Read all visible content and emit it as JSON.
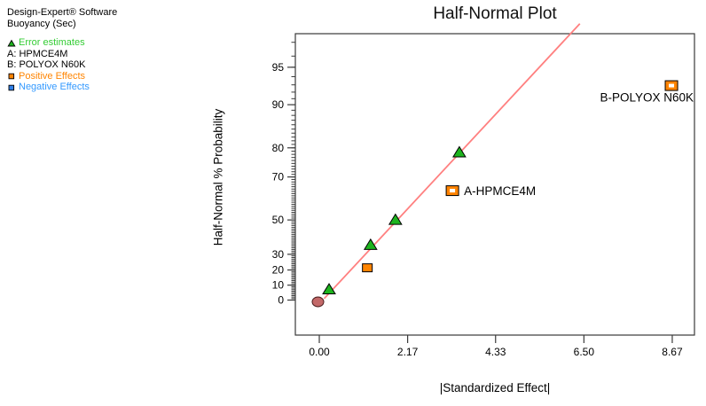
{
  "app": {
    "software_label": "Design-Expert® Software",
    "response_label": "Buoyancy (Sec)"
  },
  "legend": {
    "items": [
      {
        "label": "Error estimates",
        "icon": "triangle",
        "color": "#33cc33"
      },
      {
        "label": "A: HPMCE4M",
        "icon": "none",
        "color": "#000000"
      },
      {
        "label": "B: POLYOX N60K",
        "icon": "none",
        "color": "#000000"
      },
      {
        "label": "Positive Effects",
        "icon": "square-orange",
        "color": "#ff8400"
      },
      {
        "label": "Negative Effects",
        "icon": "square-blue",
        "color": "#3399ff"
      }
    ]
  },
  "chart_data": {
    "type": "scatter",
    "title": "Half-Normal Plot",
    "xlabel": "|Standardized Effect|",
    "ylabel": "Half-Normal % Probability",
    "x_scale": "linear",
    "y_scale": "half-normal-probability",
    "xlim": [
      -0.59,
      9.21
    ],
    "x_tick_labels": [
      "0.00",
      "2.17",
      "4.33",
      "6.50",
      "8.67"
    ],
    "x_tick_values": [
      0.0,
      2.17,
      4.33,
      6.5,
      8.67
    ],
    "y_major_ticks_pct": [
      0,
      10,
      20,
      30,
      50,
      70,
      80,
      90,
      95
    ],
    "y_minor_ticks_pct_range": [
      1,
      97
    ],
    "grid": false,
    "colors": {
      "fit_line": "#ff8080",
      "error_estimate": "#1eb41e",
      "positive_effect": "#ff8400",
      "negative_effect": "#3399ff",
      "origin_point": "#c36969",
      "axis": "#3a3a3a"
    },
    "series": [
      {
        "name": "Error estimates",
        "marker": "triangle",
        "fill": "#1eb41e",
        "points": [
          {
            "x": 0.24,
            "pct": 7.1
          },
          {
            "x": 1.26,
            "pct": 35.7
          },
          {
            "x": 1.87,
            "pct": 50.0
          },
          {
            "x": 3.44,
            "pct": 78.6
          }
        ]
      },
      {
        "name": "Positive Effects",
        "marker": "square",
        "fill": "#ff8400",
        "points": [
          {
            "x": 1.18,
            "pct": 21.4
          }
        ]
      },
      {
        "name": "Labeled positive effects",
        "marker": "square-open",
        "fill": "#ff8400",
        "points": [
          {
            "x": 3.27,
            "pct": 64.3,
            "label": "A-HPMCE4M",
            "label_anchor": "start",
            "label_dx": 13,
            "label_dy": 5
          },
          {
            "x": 8.65,
            "pct": 92.9,
            "label": "B-POLYOX N60K",
            "label_anchor": "end",
            "label_dx": 25,
            "label_dy": 18
          }
        ]
      },
      {
        "name": "Origin point",
        "marker": "circle",
        "fill": "#c36969",
        "points": [
          {
            "x": 0.0,
            "pct": 0.0
          }
        ]
      }
    ],
    "fit_line": {
      "x1": 0.12,
      "pct1": 1.0,
      "x2": 6.4,
      "pct2": 98.0
    }
  }
}
